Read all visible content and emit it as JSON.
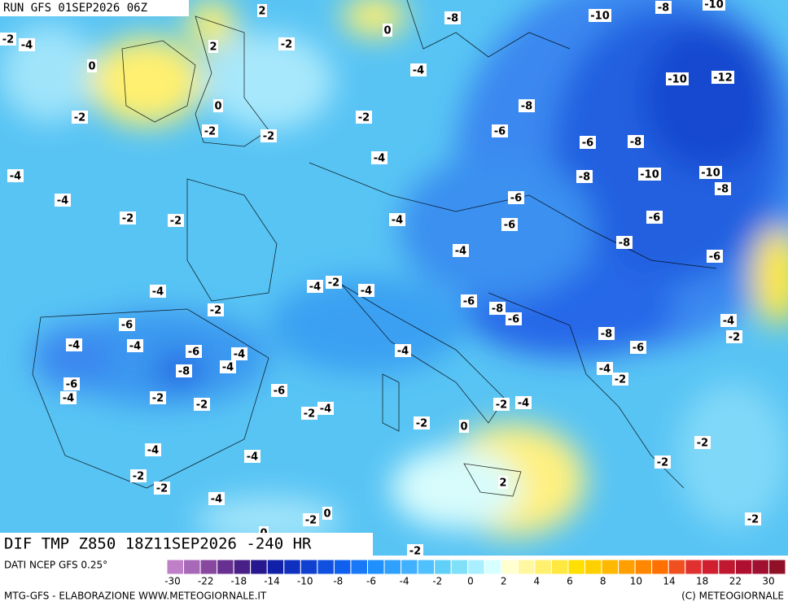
{
  "header": {
    "run": "RUN GFS 01SEP2026 06Z",
    "field": "DIF TMP Z850 18Z11SEP2026 -240 HR"
  },
  "footer": {
    "source": "DATI NCEP GFS 0.25°",
    "credit": "MTG-GFS - ELABORAZIONE WWW.METEOGIORNALE.IT",
    "copyright": "(C) METEOGIORNALE"
  },
  "colorbar": {
    "colors": [
      "#c080c8",
      "#a868b8",
      "#8848a0",
      "#683090",
      "#482088",
      "#281890",
      "#1020a8",
      "#1030c0",
      "#1040d0",
      "#1050e0",
      "#1060f0",
      "#1878f8",
      "#2090ff",
      "#30a0ff",
      "#40b0ff",
      "#50c0ff",
      "#60d0f8",
      "#80e0f8",
      "#a8f0ff",
      "#d8ffff",
      "#ffffd0",
      "#fff8a0",
      "#fff070",
      "#ffe840",
      "#ffe000",
      "#ffd000",
      "#ffb800",
      "#ffa000",
      "#ff8800",
      "#ff7000",
      "#f05020",
      "#e03030",
      "#d02030",
      "#c01830",
      "#b01030",
      "#a01030",
      "#901028"
    ],
    "labels": [
      "-30",
      "-22",
      "-18",
      "-14",
      "-10",
      "-8",
      "-6",
      "-4",
      "-2",
      "0",
      "2",
      "4",
      "6",
      "8",
      "10",
      "14",
      "18",
      "22",
      "30"
    ]
  },
  "map": {
    "labels": [
      "-2",
      "-4",
      "0",
      "2",
      "2",
      "-2",
      "0",
      "-8",
      "-10",
      "-8",
      "-10",
      "-4",
      "-8",
      "-10",
      "-12",
      "-2",
      "0",
      "-2",
      "-2",
      "-2",
      "-6",
      "-6",
      "-8",
      "-4",
      "-4",
      "-8",
      "-10",
      "-10",
      "-4",
      "-6",
      "-8",
      "-2",
      "-2",
      "-4",
      "-6",
      "-6",
      "-8",
      "-4",
      "-6",
      "-4",
      "-2",
      "-4",
      "-4",
      "-2",
      "-6",
      "-8",
      "-6",
      "-6",
      "-4",
      "-2",
      "-4",
      "-4",
      "-6",
      "-4",
      "-4",
      "-8",
      "-6",
      "-8",
      "-4",
      "-4",
      "-2",
      "-6",
      "-4",
      "-2",
      "-2",
      "-6",
      "-4",
      "-2",
      "-2",
      "-4",
      "-2",
      "0",
      "-4",
      "-4",
      "-2",
      "-2",
      "-2",
      "-2",
      "2",
      "-4",
      "-2",
      "-2",
      "0",
      "-2",
      "0"
    ]
  }
}
